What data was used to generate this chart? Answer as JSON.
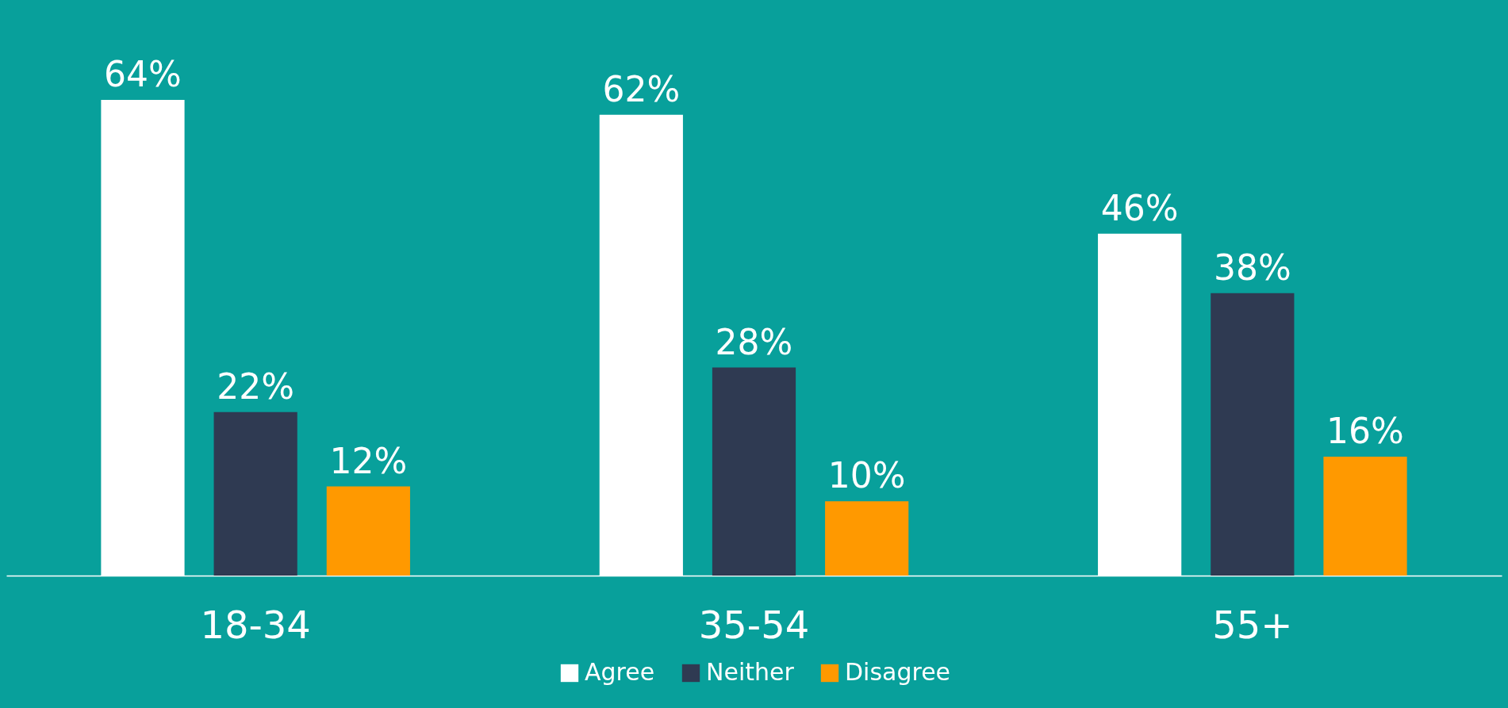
{
  "chart_data": {
    "type": "bar",
    "categories": [
      "18-34",
      "35-54",
      "55+"
    ],
    "series": [
      {
        "name": "Agree",
        "color": "#ffffff",
        "values": [
          64,
          62,
          46
        ],
        "value_labels": [
          "64%",
          "62%",
          "46%"
        ]
      },
      {
        "name": "Neither",
        "color": "#2f3a52",
        "values": [
          22,
          28,
          38
        ],
        "value_labels": [
          "22%",
          "28%",
          "38%"
        ]
      },
      {
        "name": "Disagree",
        "color": "#ff9900",
        "values": [
          12,
          10,
          16
        ],
        "value_labels": [
          "12%",
          "10%",
          "16%"
        ]
      }
    ],
    "legend": "bottom",
    "grid": false
  }
}
